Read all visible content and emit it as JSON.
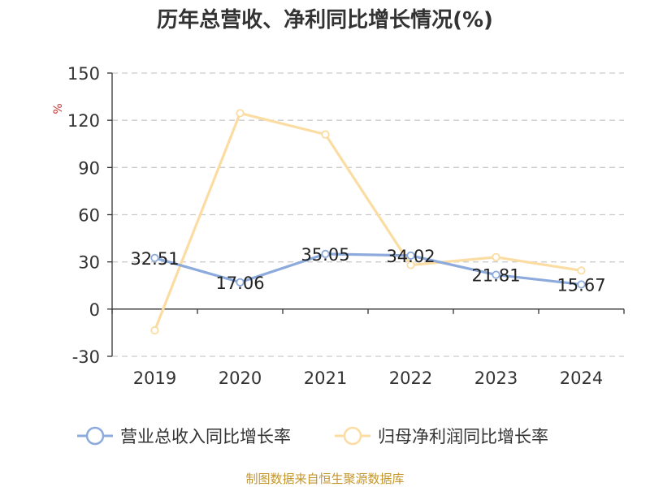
{
  "chart_data": {
    "type": "line",
    "title": "历年总营收、净利同比增长情况(%)",
    "ylabel": "%",
    "categories": [
      "2019",
      "2020",
      "2021",
      "2022",
      "2023",
      "2024"
    ],
    "ylim": [
      -30,
      150
    ],
    "yticks": [
      "150",
      "120",
      "90",
      "60",
      "30",
      "0",
      "-30"
    ],
    "ytick_values": [
      150,
      120,
      90,
      60,
      30,
      0,
      -30
    ],
    "grid": true,
    "legend_position": "bottom",
    "series": [
      {
        "name": "营业总收入同比增长率",
        "color": "#8caadb",
        "values": [
          32.51,
          17.06,
          35.05,
          34.02,
          21.81,
          15.67
        ],
        "labels": [
          "32.51",
          "17.06",
          "35.05",
          "34.02",
          "21.81",
          "15.67"
        ]
      },
      {
        "name": "归母净利润同比增长率",
        "color": "#fbdca2",
        "values": [
          -13.5,
          124.5,
          111,
          28,
          33,
          24.5
        ]
      }
    ]
  },
  "source": "制图数据来自恒生聚源数据库",
  "colors": {
    "axis": "#333333",
    "grid": "#cccccc",
    "unit": "#c23531",
    "source": "#c4962c"
  }
}
